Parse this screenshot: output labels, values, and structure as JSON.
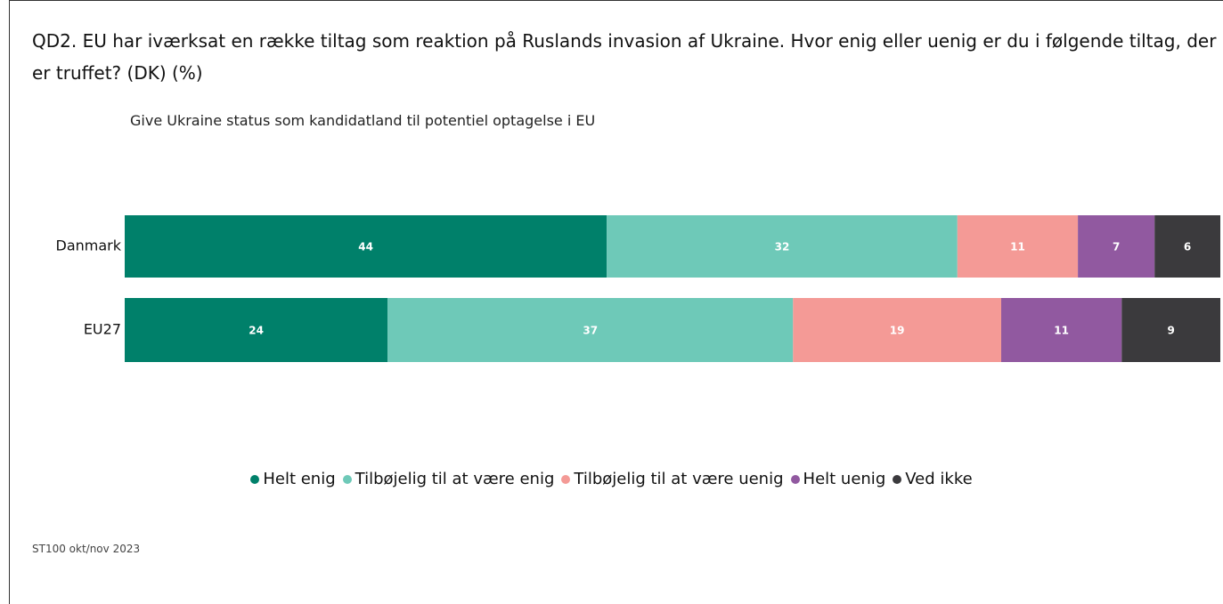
{
  "chart_data": {
    "type": "stacked_barh",
    "title": "QD2. EU har iværksat en række tiltag som reaktion på Ruslands invasion af Ukraine. Hvor enig eller uenig er du i følgende tiltag, der er truffet? (DK) (%)",
    "subtitle": "Give Ukraine status som kandidatland til potentiel optagelse i EU",
    "note": "ST100 okt/nov 2023",
    "categories": [
      "Danmark",
      "EU27"
    ],
    "xlim": [
      0,
      100
    ],
    "series": [
      {
        "name": "Helt enig",
        "color": "#00806a",
        "values": [
          44,
          24
        ]
      },
      {
        "name": "Tilbøjelig til at være enig",
        "color": "#6ec9b8",
        "values": [
          32,
          37
        ]
      },
      {
        "name": "Tilbøjelig til at være uenig",
        "color": "#f49a96",
        "values": [
          11,
          19
        ]
      },
      {
        "name": "Helt uenig",
        "color": "#9159a0",
        "values": [
          7,
          11
        ]
      },
      {
        "name": "Ved ikke",
        "color": "#3b3a3d",
        "values": [
          6,
          9
        ]
      }
    ]
  }
}
